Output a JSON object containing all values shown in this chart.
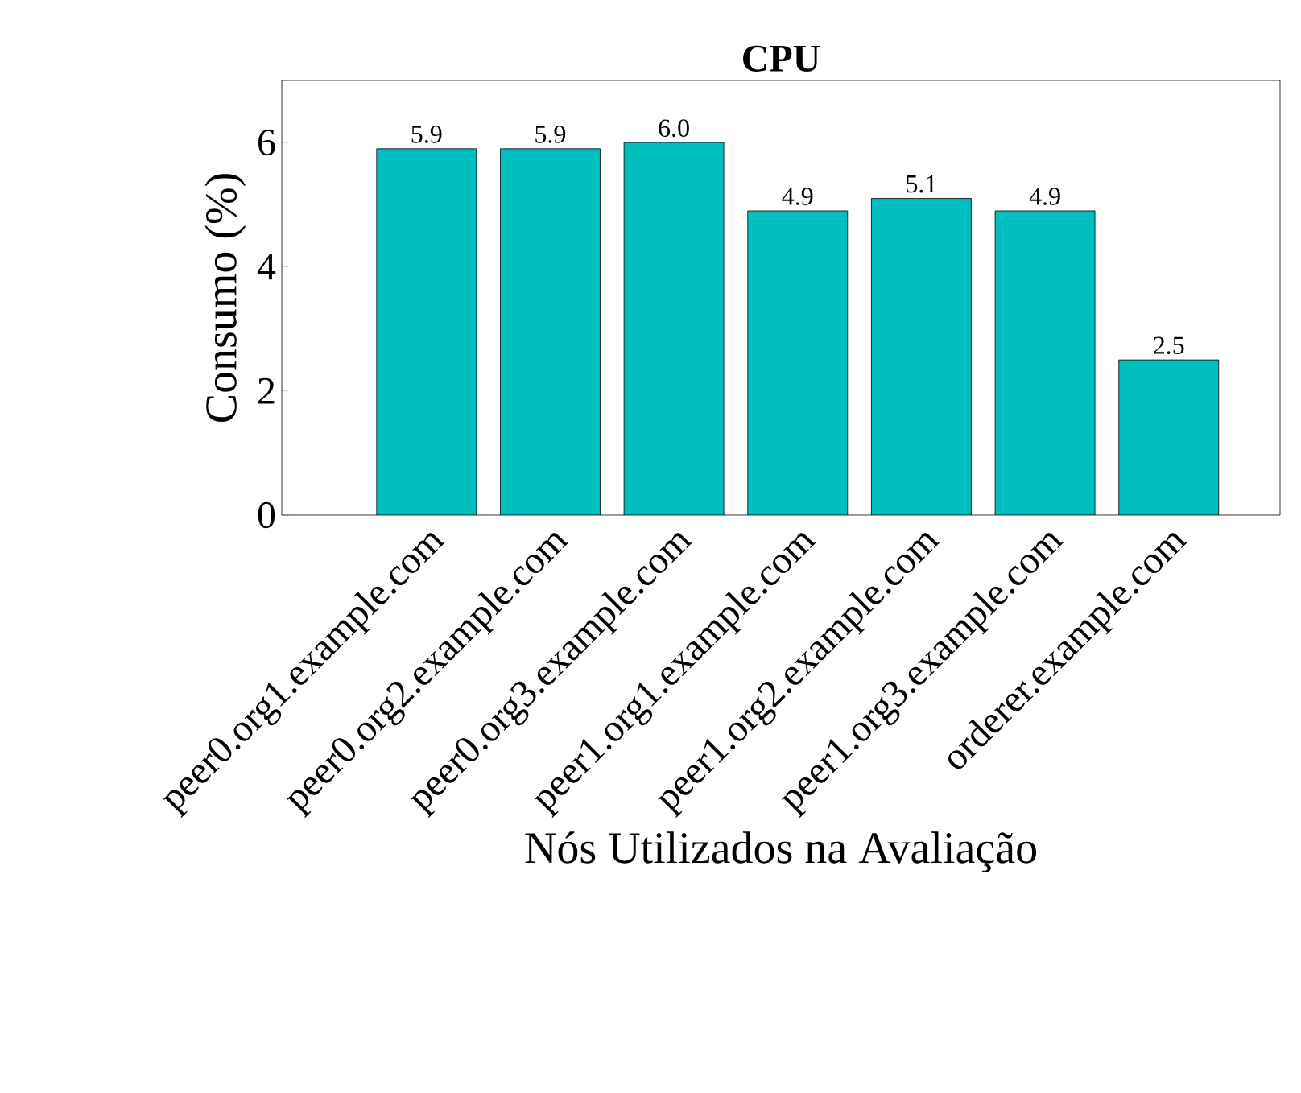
{
  "chart_data": {
    "type": "bar",
    "title": "CPU",
    "xlabel": "Nós Utilizados na Avaliação",
    "ylabel": "Consumo (%)",
    "categories": [
      "peer0.org1.example.com",
      "peer0.org2.example.com",
      "peer0.org3.example.com",
      "peer1.org1.example.com",
      "peer1.org2.example.com",
      "peer1.org3.example.com",
      "orderer.example.com"
    ],
    "values": [
      5.9,
      5.9,
      6.0,
      4.9,
      5.1,
      4.9,
      2.5
    ],
    "value_labels": [
      "5.9",
      "5.9",
      "6.0",
      "4.9",
      "5.1",
      "4.9",
      "2.5"
    ],
    "color": "#00bfbf",
    "ylim": [
      0,
      7
    ],
    "yticks": [
      0,
      2,
      4,
      6
    ],
    "grid": false
  }
}
